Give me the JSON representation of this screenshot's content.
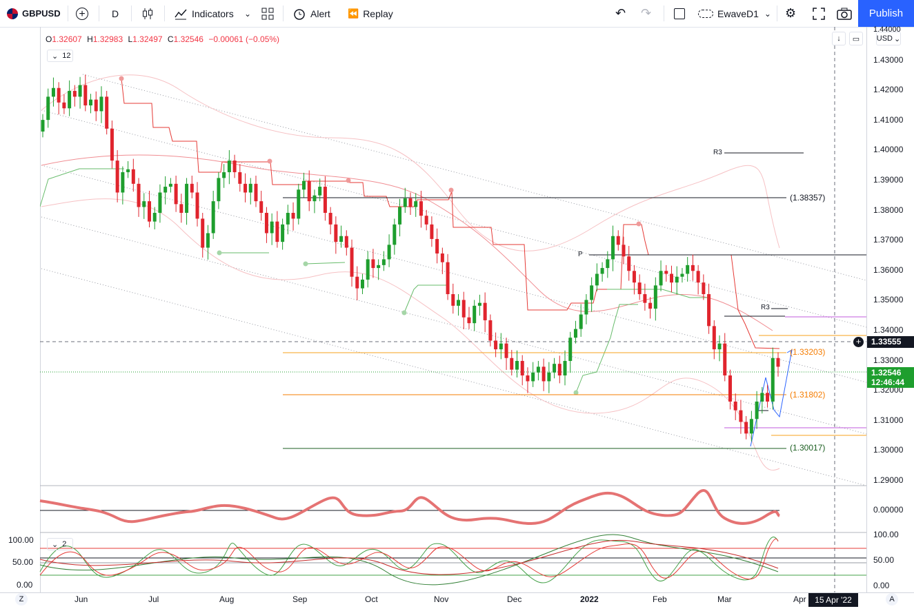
{
  "toolbar": {
    "symbol": "GBPUSD",
    "interval": "D",
    "indicators_label": "Indicators",
    "alert_label": "Alert",
    "replay_label": "Replay",
    "layout_name": "EwaveD1",
    "publish_label": "Publish"
  },
  "legend": {
    "o_label": "O",
    "o": "1.32607",
    "h_label": "H",
    "h": "1.32983",
    "l_label": "L",
    "l": "1.32497",
    "c_label": "C",
    "c": "1.32546",
    "change": "−0.00061 (−0.05%)",
    "collapse_count": "12",
    "osc_count": "2"
  },
  "price_axis": {
    "currency": "USD",
    "labels": [
      "1.44000",
      "1.43000",
      "1.42000",
      "1.41000",
      "1.40000",
      "1.39000",
      "1.38000",
      "1.37000",
      "1.36000",
      "1.35000",
      "1.34000",
      "1.33000",
      "1.32000",
      "1.31000",
      "1.30000",
      "1.29000"
    ],
    "crosshair_price": "1.33555",
    "last_price": "1.32546",
    "countdown": "12:46:44"
  },
  "levels": {
    "l1": "(1.38357)",
    "l2": "(1.33203)",
    "l3": "(1.31802)",
    "l4": "(1.30017)",
    "r3a": "R3",
    "r3b": "R3",
    "p": "P"
  },
  "osc1_axis": {
    "zero": "0.00000"
  },
  "osc2_axis": {
    "left": [
      "100.00",
      "50.00",
      "0.00"
    ],
    "right": [
      "100.00",
      "50.00",
      "0.00"
    ]
  },
  "time_axis": {
    "labels": [
      "Jun",
      "Jul",
      "Aug",
      "Sep",
      "Oct",
      "Nov",
      "Dec",
      "2022",
      "Feb",
      "Mar",
      "Apr"
    ],
    "crosshair_date": "15 Apr '22",
    "left_btn": "Z",
    "right_btn": "A"
  },
  "colors": {
    "bull": "#26a69a",
    "green_candle": "#1e9e2e",
    "red_candle": "#e0242d",
    "accent": "#2962ff"
  },
  "chart_data": {
    "type": "candlestick",
    "symbol": "GBPUSD",
    "timeframe": "D",
    "ylim": [
      1.285,
      1.443
    ],
    "closes": [
      1.41,
      1.418,
      1.421,
      1.416,
      1.414,
      1.42,
      1.418,
      1.422,
      1.415,
      1.417,
      1.413,
      1.418,
      1.407,
      1.396,
      1.385,
      1.392,
      1.393,
      1.388,
      1.38,
      1.382,
      1.375,
      1.378,
      1.385,
      1.387,
      1.388,
      1.381,
      1.378,
      1.388,
      1.385,
      1.376,
      1.366,
      1.371,
      1.382,
      1.39,
      1.392,
      1.396,
      1.392,
      1.388,
      1.385,
      1.388,
      1.382,
      1.378,
      1.371,
      1.375,
      1.368,
      1.374,
      1.378,
      1.376,
      1.386,
      1.389,
      1.382,
      1.384,
      1.387,
      1.378,
      1.374,
      1.368,
      1.37,
      1.366,
      1.356,
      1.352,
      1.355,
      1.362,
      1.359,
      1.36,
      1.362,
      1.367,
      1.374,
      1.38,
      1.383,
      1.38,
      1.382,
      1.377,
      1.374,
      1.369,
      1.364,
      1.361,
      1.35,
      1.346,
      1.348,
      1.342,
      1.34,
      1.346,
      1.347,
      1.341,
      1.334,
      1.331,
      1.333,
      1.328,
      1.324,
      1.327,
      1.322,
      1.32,
      1.323,
      1.325,
      1.32,
      1.323,
      1.326,
      1.322,
      1.327,
      1.335,
      1.338,
      1.343,
      1.348,
      1.353,
      1.357,
      1.359,
      1.362,
      1.37,
      1.367,
      1.363,
      1.358,
      1.354,
      1.35,
      1.347,
      1.345,
      1.353,
      1.358,
      1.357,
      1.354,
      1.356,
      1.357,
      1.36,
      1.358,
      1.354,
      1.35,
      1.339,
      1.331,
      1.333,
      1.322,
      1.313,
      1.31,
      1.306,
      1.302,
      1.307,
      1.313,
      1.316,
      1.313,
      1.328,
      1.325
    ]
  }
}
